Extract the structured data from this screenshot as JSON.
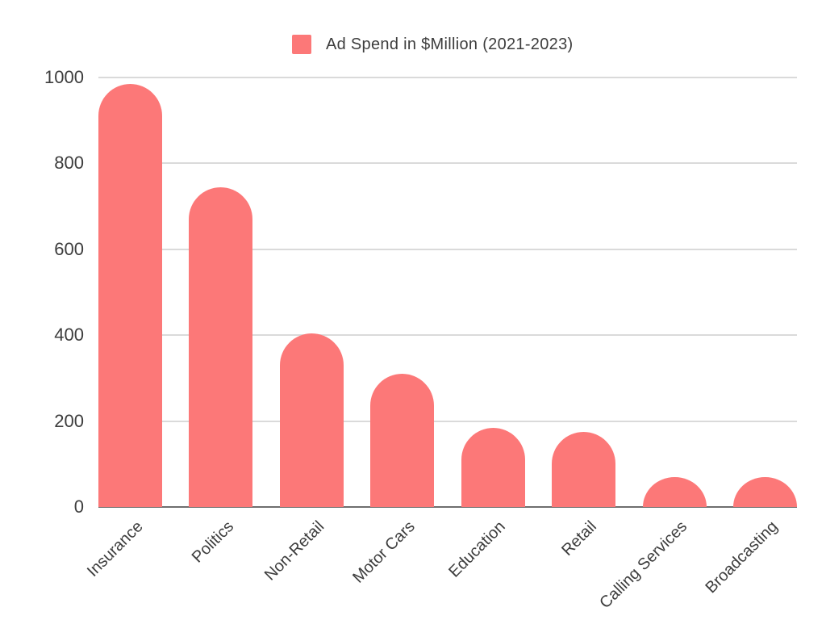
{
  "legend": {
    "label": "Ad Spend in $Million (2021-2023)"
  },
  "chart_data": {
    "type": "bar",
    "title": "Ad Spend in $Million (2021-2023)",
    "series_name": "Ad Spend in $Million (2021-2023)",
    "categories": [
      "Insurance",
      "Politics",
      "Non-Retail",
      "Motor Cars",
      "Education",
      "Retail",
      "Calling Services",
      "Broadcasting"
    ],
    "values": [
      985,
      745,
      405,
      310,
      185,
      175,
      70,
      70
    ],
    "xlabel": "",
    "ylabel": "",
    "ylim": [
      0,
      1000
    ],
    "yticks": [
      0,
      200,
      400,
      600,
      800,
      1000
    ],
    "ytick_labels": [
      "0",
      "200",
      "400",
      "600",
      "800",
      "1000"
    ],
    "grid": true,
    "legend_position": "top-center",
    "bar_shape": "rounded-top",
    "xlabel_rotation_deg": -45,
    "colors": {
      "bar": "#FC7878",
      "gridline": "#DADADA",
      "axis_line": "#6E6E6E",
      "text": "#3D3D3D",
      "background": "#FFFFFF"
    }
  }
}
